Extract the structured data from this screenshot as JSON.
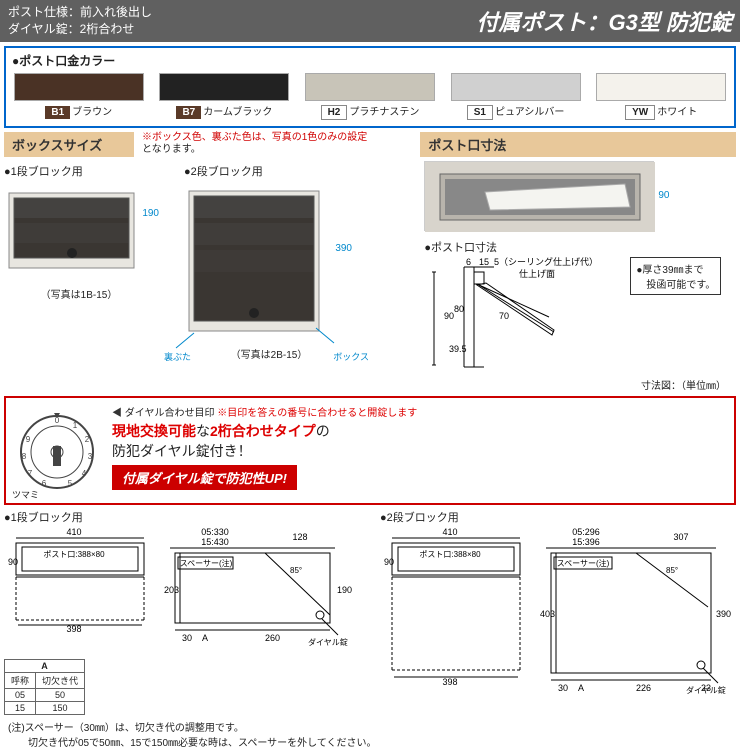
{
  "header": {
    "spec1": "ポスト仕様：前入れ後出し",
    "spec2": "ダイヤル錠：2桁合わせ",
    "title": "付属ポスト：G3型 防犯錠"
  },
  "colors": {
    "title": "●ポスト口金カラー",
    "items": [
      {
        "code": "B1",
        "name": "ブラウン",
        "hex": "#4a3225",
        "badgeClass": "dark"
      },
      {
        "code": "B7",
        "name": "カームブラック",
        "hex": "#222222",
        "badgeClass": "dark"
      },
      {
        "code": "H2",
        "name": "プラチナステン",
        "hex": "#c8c4b8",
        "badgeClass": "light"
      },
      {
        "code": "S1",
        "name": "ピュアシルバー",
        "hex": "#d0d0d0",
        "badgeClass": "light"
      },
      {
        "code": "YW",
        "name": "ホワイト",
        "hex": "#f4f2ec",
        "badgeClass": "light"
      }
    ]
  },
  "box_size": {
    "head": "ボックスサイズ",
    "note_prefix": "※ボックス色、裏ぶた色は、写真の1色のみの設定",
    "note_suffix": "となります。",
    "block1_title": "●1段ブロック用",
    "block1_caption": "（写真は1B-15）",
    "block1_dim": "190",
    "block2_title": "●2段ブロック用",
    "block2_caption": "（写真は2B-15）",
    "block2_dim": "390",
    "label_back": "裏ぶた",
    "label_box": "ボックス"
  },
  "post_slot": {
    "head": "ポスト口寸法",
    "dim": "90",
    "subhead": "●ポスト口寸法",
    "dims": {
      "a": "6",
      "b": "15",
      "c": "5（シーリング仕上げ代）",
      "finish": "仕上げ面",
      "h90": "90",
      "h80": "80",
      "h395": "39.5",
      "ang": "70"
    },
    "thick_note": "●厚さ39㎜まで\n　投函可能です。",
    "unit": "寸法図：（単位㎜）"
  },
  "dial": {
    "hint_label": "ダイヤル合わせ目印",
    "hint_red": "※目印を答えの番号に合わせると開錠します",
    "line1a": "現地交換可能",
    "line1b": "な",
    "line1c": "2桁合わせタイプ",
    "line1d": "の",
    "line2": "防犯ダイヤル錠付き！",
    "banner": "付属ダイヤル錠で防犯性UP!",
    "knob": "ツマミ"
  },
  "diagrams": {
    "block1": "●1段ブロック用",
    "block2": "●2段ブロック用",
    "front_w": "410",
    "slot_spec": "ポスト口:388×80",
    "h90": "90",
    "w398": "398",
    "side1_top05": "05:330",
    "side1_top15": "15:430",
    "side1_128": "128",
    "spacer": "スペーサー(注)",
    "h203": "203",
    "h190": "190",
    "w30": "30",
    "wA": "A",
    "w260": "260",
    "ang85": "85°",
    "dial_label": "ダイヤル錠",
    "side2_top05": "05:296",
    "side2_top15": "15:396",
    "side2_307": "307",
    "h403": "403",
    "h390": "390",
    "w226": "226",
    "w23": "23"
  },
  "table": {
    "head_a": "A",
    "col1": "呼称",
    "col2": "切欠き代",
    "r1c1": "05",
    "r1c2": "50",
    "r2c1": "15",
    "r2c2": "150"
  },
  "footer": {
    "l1": "(注)スペーサー（30㎜）は、切欠き代の調整用です。",
    "l2": "　　切欠き代が05で50㎜、15で150㎜必要な時は、スペーサーを外してください。"
  }
}
